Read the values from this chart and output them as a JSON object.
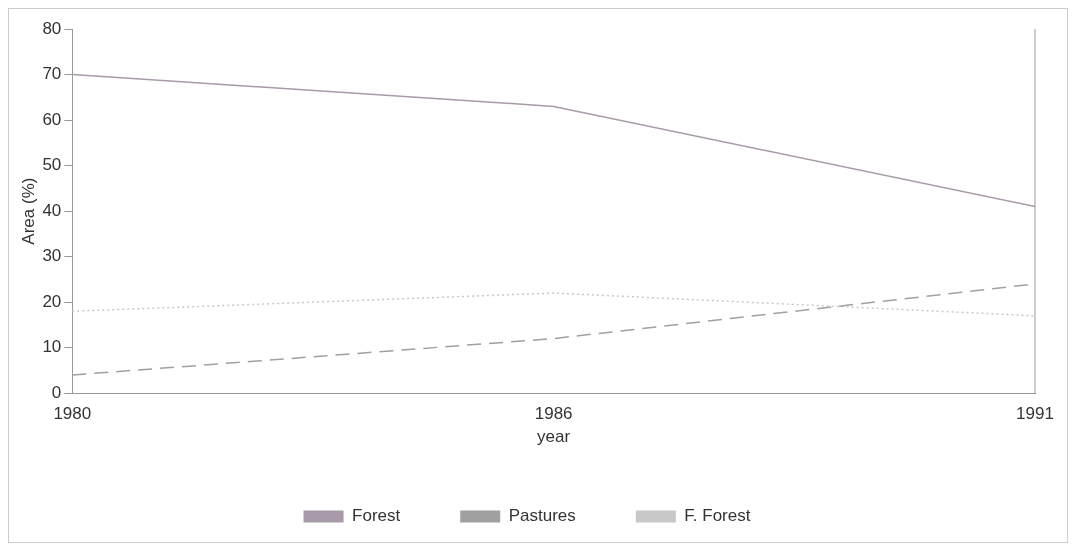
{
  "chart_data": {
    "type": "line",
    "xlabel": "year",
    "ylabel": "Area (%)",
    "categories": [
      "1980",
      "1986",
      "1991"
    ],
    "ylim": [
      0,
      80
    ],
    "yticks": [
      0,
      10,
      20,
      30,
      40,
      50,
      60,
      70,
      80
    ],
    "grid": false,
    "legend": "bottom",
    "marker": "none",
    "series": [
      {
        "name": "Forest",
        "color": "#a89aa8",
        "values": [
          70,
          63,
          41
        ],
        "line_style": "solid"
      },
      {
        "name": "Pastures",
        "color": "#a0a0a0",
        "values": [
          4,
          12,
          24
        ],
        "line_style": "dashed"
      },
      {
        "name": "F. Forest",
        "color": "#c8c8c8",
        "values": [
          18,
          22,
          17
        ],
        "line_style": "dotted"
      }
    ]
  }
}
